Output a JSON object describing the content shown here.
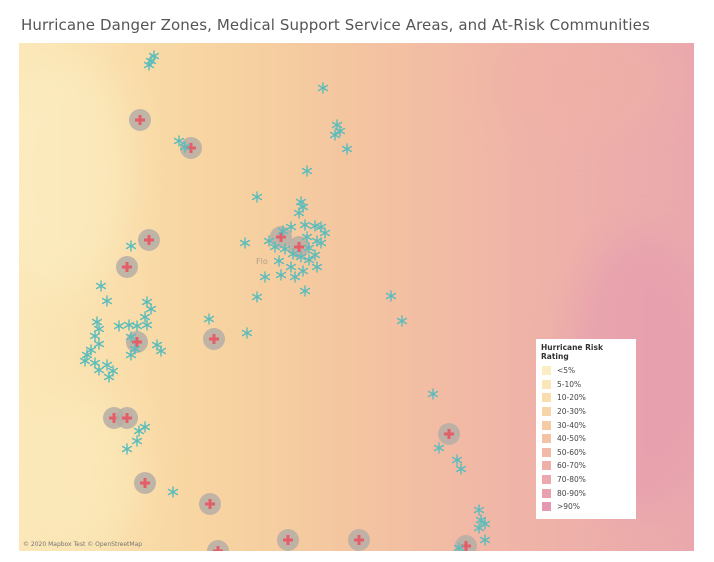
{
  "title": "Hurricane Danger Zones, Medical Support Service Areas, and At-Risk Communities",
  "map": {
    "attribution": "© 2020 Mapbox Test © OpenStreetMap",
    "place_label": "Flo",
    "icons": {
      "medical": "medical-cross-icon",
      "community": "asterisk-icon"
    },
    "colors": {
      "medical_halo": "#b5aea6",
      "medical_cross": "#e45e6a",
      "community": "#5bbcbc"
    }
  },
  "legend": {
    "title": "Hurricane Risk Rating",
    "items": [
      {
        "label": "<5%",
        "color": "#fbeec3"
      },
      {
        "label": "5-10%",
        "color": "#f9e7b9"
      },
      {
        "label": "10-20%",
        "color": "#f8deae"
      },
      {
        "label": "20-30%",
        "color": "#f7d5a8"
      },
      {
        "label": "30-40%",
        "color": "#f5cba5"
      },
      {
        "label": "40-50%",
        "color": "#f4c2a4"
      },
      {
        "label": "50-60%",
        "color": "#f2b9a6"
      },
      {
        "label": "60-70%",
        "color": "#efb0aa"
      },
      {
        "label": "70-80%",
        "color": "#eca8ad"
      },
      {
        "label": "80-90%",
        "color": "#e9a0af"
      },
      {
        "label": ">90%",
        "color": "#e598b2"
      }
    ]
  }
}
